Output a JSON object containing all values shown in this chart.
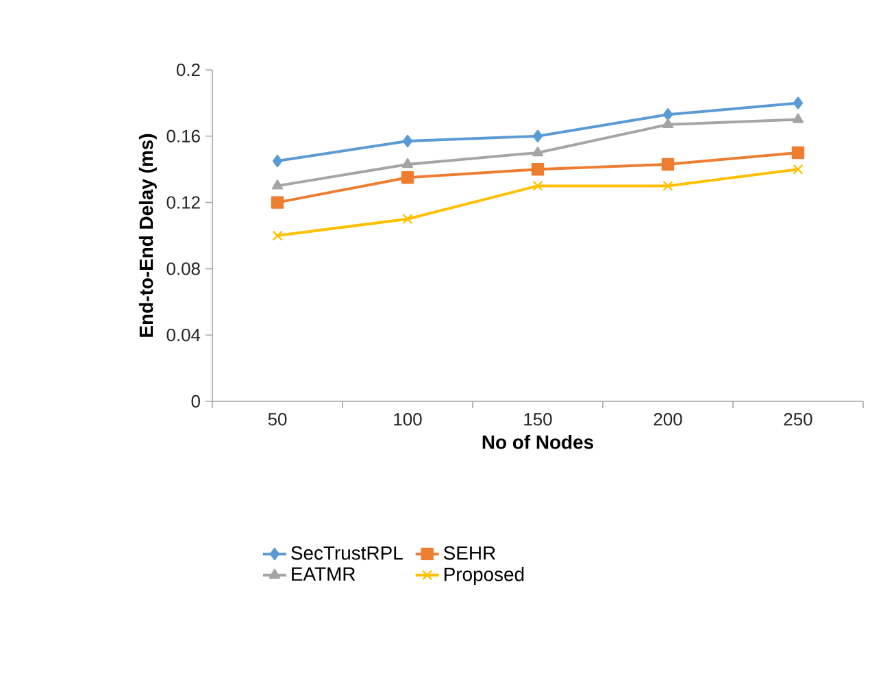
{
  "chart_data": {
    "type": "line",
    "xlabel": "No of Nodes",
    "ylabel": "End-to-End Delay (ms)",
    "categories": [
      "50",
      "100",
      "150",
      "200",
      "250"
    ],
    "series": [
      {
        "name": "SecTrustRPL",
        "color": "#5b9bd5",
        "marker": "diamond",
        "values": [
          0.145,
          0.157,
          0.16,
          0.173,
          0.18
        ]
      },
      {
        "name": "SEHR",
        "color": "#ed7d31",
        "marker": "square",
        "values": [
          0.12,
          0.135,
          0.14,
          0.143,
          0.15
        ]
      },
      {
        "name": "EATMR",
        "color": "#a5a5a5",
        "marker": "triangle",
        "values": [
          0.13,
          0.143,
          0.15,
          0.167,
          0.17
        ]
      },
      {
        "name": "Proposed",
        "color": "#ffc000",
        "marker": "cross",
        "values": [
          0.1,
          0.11,
          0.13,
          0.13,
          0.14
        ]
      }
    ],
    "ylim": [
      0,
      0.2
    ],
    "yticks": [
      0,
      0.04,
      0.08,
      0.12,
      0.16,
      0.2
    ],
    "grid": false,
    "legend": "bottom"
  }
}
